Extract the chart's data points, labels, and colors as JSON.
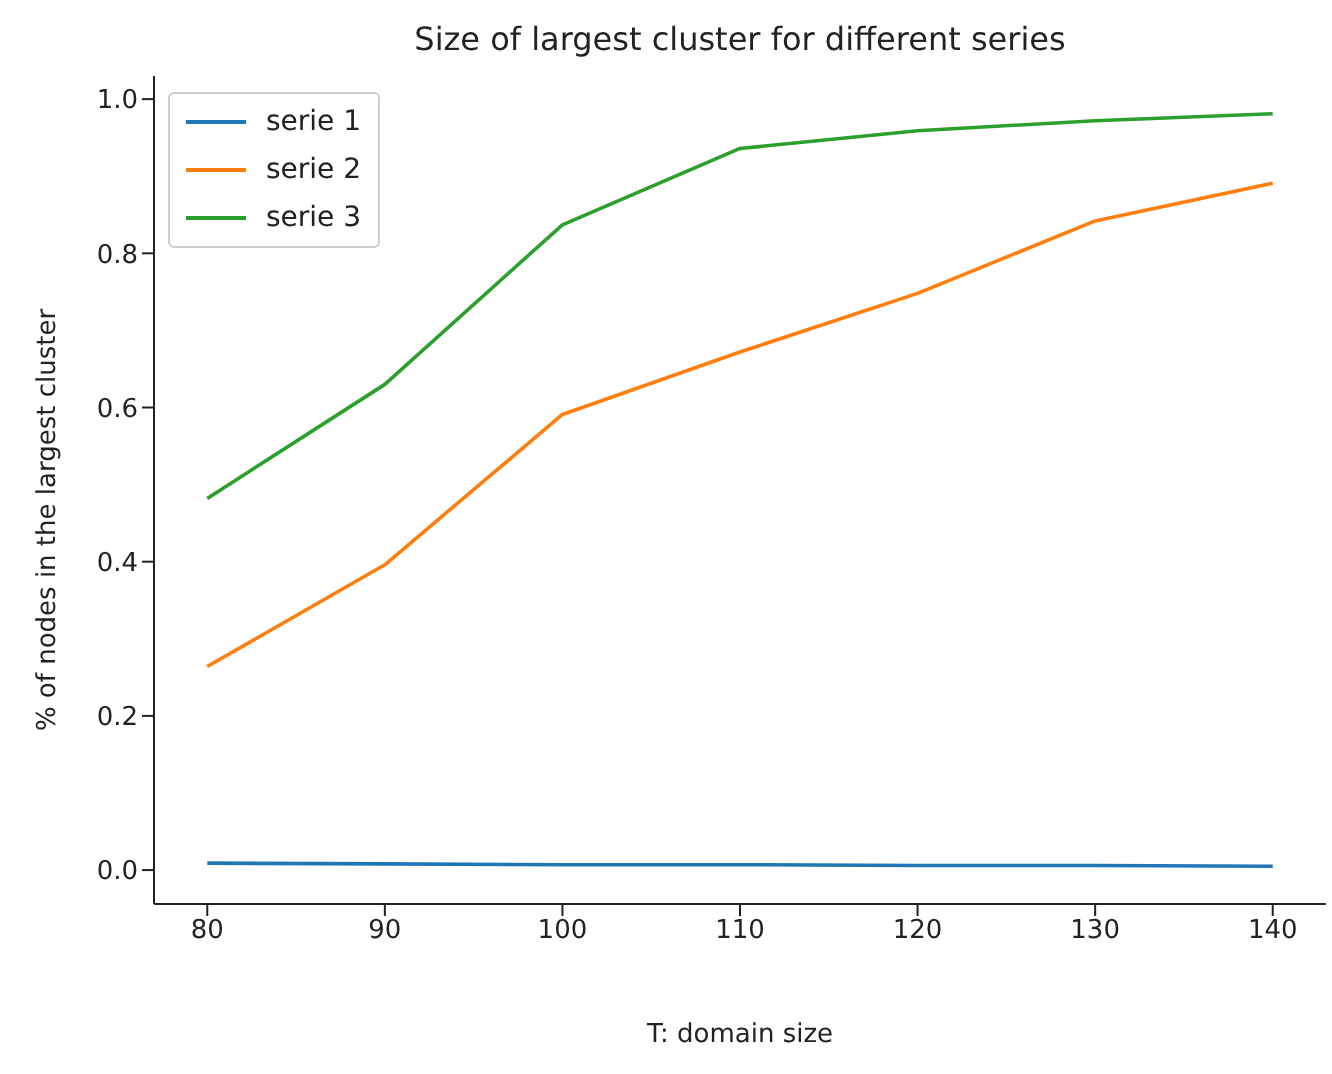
{
  "chart_data": {
    "type": "line",
    "title": "Size of largest cluster for different series",
    "xlabel": "T: domain size",
    "ylabel": "% of nodes in the largest cluster",
    "x": [
      80,
      90,
      100,
      110,
      120,
      130,
      140
    ],
    "series": [
      {
        "name": "serie 1",
        "color": "#1f77b4",
        "values": [
          0.009,
          0.008,
          0.007,
          0.007,
          0.006,
          0.006,
          0.005
        ]
      },
      {
        "name": "serie 2",
        "color": "#ff7f0e",
        "values": [
          0.264,
          0.396,
          0.591,
          0.672,
          0.748,
          0.842,
          0.891
        ]
      },
      {
        "name": "serie 3",
        "color": "#2ca02c",
        "values": [
          0.482,
          0.63,
          0.837,
          0.936,
          0.959,
          0.972,
          0.981
        ]
      }
    ],
    "xlim": [
      77,
      143
    ],
    "xticks": [
      80,
      90,
      100,
      110,
      120,
      130,
      140
    ],
    "ylim": [
      -0.044,
      1.03
    ],
    "yticks": [
      {
        "value": 0,
        "label": "0.0"
      },
      0.2,
      0.4,
      0.6,
      0.8,
      {
        "value": 1,
        "label": "1.0"
      }
    ],
    "grid": false,
    "legend": "top left",
    "marker": "none",
    "line_style": "solid"
  }
}
